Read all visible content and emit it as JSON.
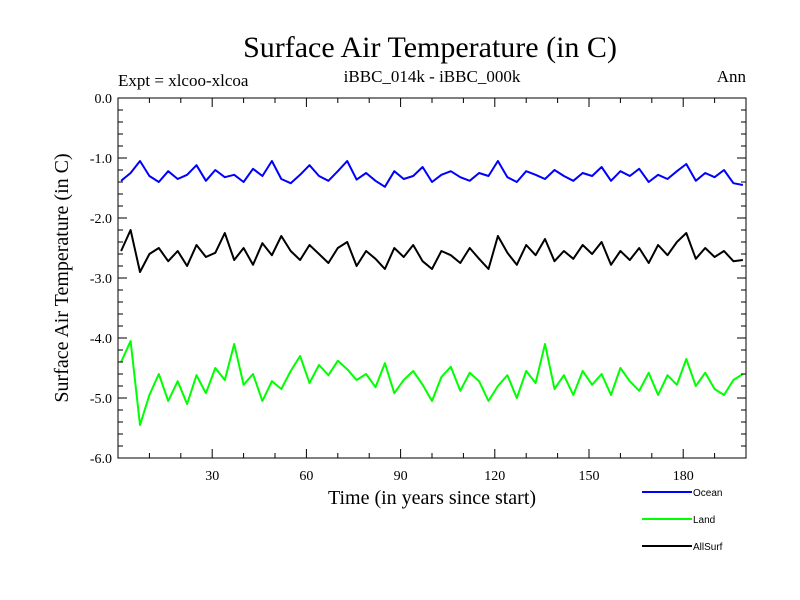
{
  "chart_data": {
    "type": "line",
    "title": "Surface Air Temperature (in C)",
    "subtitle_left": "Expt = xlcoo-xlcoa",
    "subtitle_center": "iBBC_014k - iBBC_000k",
    "subtitle_right": "Ann",
    "xlabel": "Time (in years since start)",
    "ylabel": "Surface Air Temperature (in C)",
    "xlim": [
      0,
      200
    ],
    "ylim": [
      -6.0,
      0.0
    ],
    "xticks": [
      30,
      60,
      90,
      120,
      150,
      180
    ],
    "xtick_labels": [
      "30",
      "60",
      "90",
      "120",
      "150",
      "180"
    ],
    "yticks": [
      0.0,
      -1.0,
      -2.0,
      -3.0,
      -4.0,
      -5.0,
      -6.0
    ],
    "ytick_labels": [
      "0.0",
      "-1.0",
      "-2.0",
      "-3.0",
      "-4.0",
      "-5.0",
      "-6.0"
    ],
    "legend_position": "bottom-right, outside plot",
    "series": [
      {
        "name": "Ocean",
        "color": "#0000ff",
        "x_start": 1,
        "x_step": 3,
        "values": [
          -1.38,
          -1.25,
          -1.05,
          -1.3,
          -1.4,
          -1.22,
          -1.35,
          -1.28,
          -1.12,
          -1.38,
          -1.2,
          -1.32,
          -1.28,
          -1.4,
          -1.18,
          -1.3,
          -1.05,
          -1.35,
          -1.42,
          -1.28,
          -1.12,
          -1.3,
          -1.38,
          -1.22,
          -1.05,
          -1.36,
          -1.25,
          -1.38,
          -1.48,
          -1.22,
          -1.35,
          -1.3,
          -1.15,
          -1.4,
          -1.28,
          -1.22,
          -1.32,
          -1.38,
          -1.25,
          -1.3,
          -1.05,
          -1.32,
          -1.4,
          -1.22,
          -1.28,
          -1.35,
          -1.2,
          -1.3,
          -1.38,
          -1.25,
          -1.3,
          -1.15,
          -1.38,
          -1.22,
          -1.3,
          -1.18,
          -1.4,
          -1.28,
          -1.35,
          -1.22,
          -1.1,
          -1.38,
          -1.25,
          -1.32,
          -1.2,
          -1.42,
          -1.45
        ]
      },
      {
        "name": "Land",
        "color": "#00ff00",
        "x_start": 1,
        "x_step": 3,
        "values": [
          -4.4,
          -4.05,
          -5.45,
          -4.95,
          -4.6,
          -5.05,
          -4.72,
          -5.1,
          -4.62,
          -4.92,
          -4.5,
          -4.7,
          -4.1,
          -4.78,
          -4.6,
          -5.05,
          -4.72,
          -4.85,
          -4.55,
          -4.3,
          -4.75,
          -4.45,
          -4.62,
          -4.38,
          -4.52,
          -4.7,
          -4.6,
          -4.82,
          -4.42,
          -4.92,
          -4.7,
          -4.55,
          -4.78,
          -5.05,
          -4.65,
          -4.48,
          -4.88,
          -4.58,
          -4.72,
          -5.05,
          -4.8,
          -4.62,
          -5.0,
          -4.55,
          -4.75,
          -4.1,
          -4.85,
          -4.62,
          -4.95,
          -4.55,
          -4.78,
          -4.6,
          -4.95,
          -4.5,
          -4.72,
          -4.88,
          -4.58,
          -4.95,
          -4.62,
          -4.78,
          -4.35,
          -4.8,
          -4.58,
          -4.85,
          -4.95,
          -4.7,
          -4.6
        ]
      },
      {
        "name": "AllSurf",
        "color": "#000000",
        "x_start": 1,
        "x_step": 3,
        "values": [
          -2.55,
          -2.2,
          -2.9,
          -2.6,
          -2.5,
          -2.72,
          -2.55,
          -2.8,
          -2.45,
          -2.65,
          -2.58,
          -2.25,
          -2.7,
          -2.5,
          -2.78,
          -2.42,
          -2.62,
          -2.3,
          -2.55,
          -2.7,
          -2.45,
          -2.6,
          -2.75,
          -2.5,
          -2.4,
          -2.8,
          -2.55,
          -2.68,
          -2.85,
          -2.5,
          -2.65,
          -2.45,
          -2.72,
          -2.85,
          -2.55,
          -2.62,
          -2.75,
          -2.5,
          -2.68,
          -2.85,
          -2.3,
          -2.58,
          -2.78,
          -2.45,
          -2.62,
          -2.35,
          -2.72,
          -2.55,
          -2.68,
          -2.45,
          -2.6,
          -2.4,
          -2.78,
          -2.55,
          -2.7,
          -2.5,
          -2.75,
          -2.45,
          -2.62,
          -2.4,
          -2.25,
          -2.68,
          -2.5,
          -2.65,
          -2.55,
          -2.72,
          -2.7
        ]
      }
    ]
  }
}
